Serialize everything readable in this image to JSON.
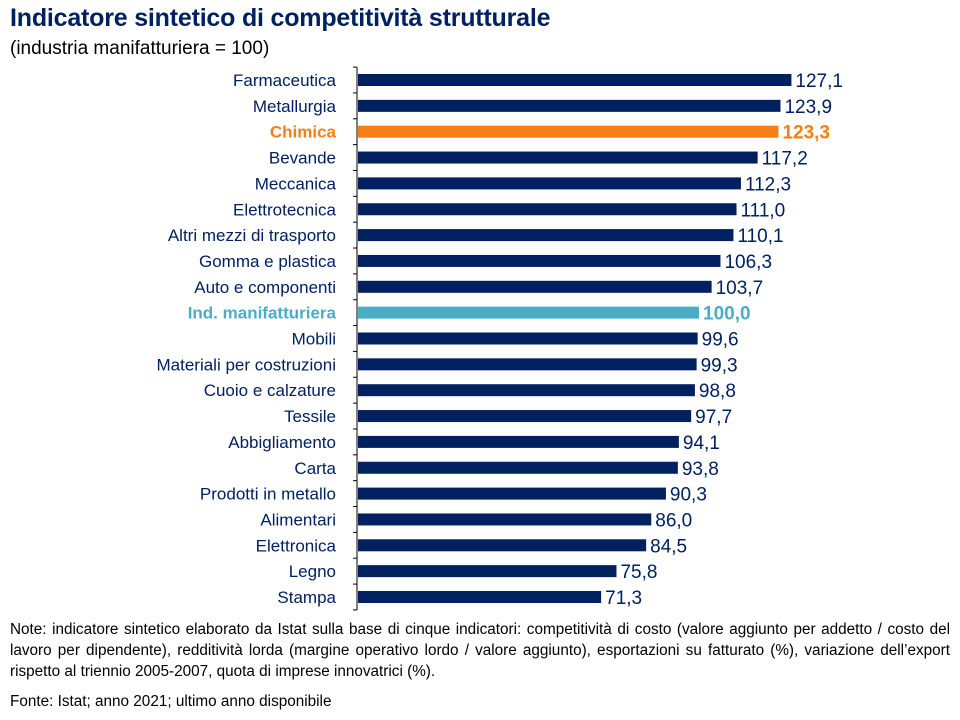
{
  "chart_data": {
    "type": "bar",
    "orientation": "horizontal",
    "title": "Indicatore sintetico di competitività strutturale",
    "subtitle": "(industria manifatturiera = 100)",
    "categories": [
      "Farmaceutica",
      "Metallurgia",
      "Chimica",
      "Bevande",
      "Meccanica",
      "Elettrotecnica",
      "Altri mezzi di trasporto",
      "Gomma e plastica",
      "Auto e componenti",
      "Ind. manifatturiera",
      "Mobili",
      "Materiali per costruzioni",
      "Cuoio e calzature",
      "Tessile",
      "Abbigliamento",
      "Carta",
      "Prodotti in metallo",
      "Alimentari",
      "Elettronica",
      "Legno",
      "Stampa"
    ],
    "values": [
      127.1,
      123.9,
      123.3,
      117.2,
      112.3,
      111.0,
      110.1,
      106.3,
      103.7,
      100.0,
      99.6,
      99.3,
      98.8,
      97.7,
      94.1,
      93.8,
      90.3,
      86.0,
      84.5,
      75.8,
      71.3
    ],
    "value_labels": [
      "127,1",
      "123,9",
      "123,3",
      "117,2",
      "112,3",
      "111,0",
      "110,1",
      "106,3",
      "103,7",
      "100,0",
      "99,6",
      "99,3",
      "98,8",
      "97,7",
      "94,1",
      "93,8",
      "90,3",
      "86,0",
      "84,5",
      "75,8",
      "71,3"
    ],
    "highlights": {
      "Chimica": "#F57F17",
      "Ind. manifatturiera": "#4BACC6"
    },
    "bar_color": "#002060",
    "xlim": [
      0,
      130
    ],
    "grid": false,
    "legend": "none"
  },
  "note": "Note: indicatore sintetico elaborato da Istat sulla base di cinque indicatori: competitività di costo (valore aggiunto per addetto / costo del lavoro per dipendente), redditività lorda (margine operativo lordo / valore aggiunto), esportazioni su fatturato (%), variazione dell’export rispetto al triennio 2005-2007, quota di imprese innovatrici (%).",
  "source": "Fonte: Istat; anno 2021; ultimo anno disponibile"
}
